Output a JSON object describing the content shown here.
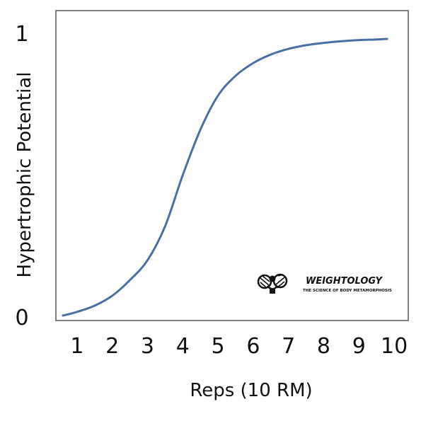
{
  "chart_data": {
    "type": "line",
    "title": "",
    "xlabel": "Reps (10 RM)",
    "ylabel": "Hypertrophic Potential",
    "x_ticks": [
      "1",
      "2",
      "3",
      "4",
      "5",
      "6",
      "7",
      "8",
      "9",
      "10"
    ],
    "y_ticks": [
      "0",
      "1"
    ],
    "xlim": [
      0.4,
      10.4
    ],
    "ylim": [
      0,
      1
    ],
    "grid": false,
    "legend": "none",
    "series": [
      {
        "color": "#4a6fa5",
        "x": [
          0.6,
          1.0,
          1.5,
          2.0,
          2.5,
          3.0,
          3.5,
          4.0,
          4.5,
          5.0,
          5.5,
          6.0,
          6.5,
          7.0,
          7.5,
          8.0,
          8.5,
          9.0,
          9.5,
          9.8
        ],
        "y": [
          0.005,
          0.018,
          0.04,
          0.075,
          0.13,
          0.2,
          0.32,
          0.5,
          0.66,
          0.78,
          0.85,
          0.895,
          0.925,
          0.945,
          0.958,
          0.966,
          0.972,
          0.976,
          0.978,
          0.98
        ]
      }
    ]
  },
  "logo": {
    "name": "WEIGHTOLOGY",
    "tagline": "THE SCIENCE OF BODY METAMORPHOSIS"
  }
}
